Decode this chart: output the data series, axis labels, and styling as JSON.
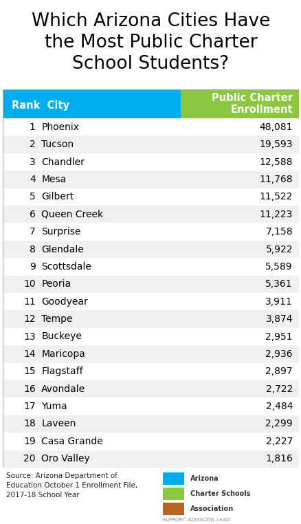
{
  "title": "Which Arizona Cities Have\nthe Most Public Charter\nSchool Students?",
  "header_col1": "Rank  City",
  "header_col2": "Public Charter\nEnrollment",
  "ranks": [
    1,
    2,
    3,
    4,
    5,
    6,
    7,
    8,
    9,
    10,
    11,
    12,
    13,
    14,
    15,
    16,
    17,
    18,
    19,
    20
  ],
  "cities": [
    "Phoenix",
    "Tucson",
    "Chandler",
    "Mesa",
    "Gilbert",
    "Queen Creek",
    "Surprise",
    "Glendale",
    "Scottsdale",
    "Peoria",
    "Goodyear",
    "Tempe",
    "Buckeye",
    "Maricopa",
    "Flagstaff",
    "Avondale",
    "Yuma",
    "Laveen",
    "Casa Grande",
    "Oro Valley"
  ],
  "enrollments": [
    "48,081",
    "19,593",
    "12,588",
    "11,768",
    "11,522",
    "11,223",
    "7,158",
    "5,922",
    "5,589",
    "5,361",
    "3,911",
    "3,874",
    "2,951",
    "2,936",
    "2,897",
    "2,722",
    "2,484",
    "2,299",
    "2,227",
    "1,816"
  ],
  "header_bg_left": "#00aeef",
  "header_bg_right": "#8dc63f",
  "header_text_color": "#ffffff",
  "row_bg_odd": "#f0f0f0",
  "row_bg_even": "#ffffff",
  "title_color": "#000000",
  "rank_city_color": "#000000",
  "enrollment_color": "#000000",
  "source_text": "Source: Arizona Department of\nEducation October 1 Enrollment File,\n2017-18 School Year",
  "logo_colors": [
    "#00aeef",
    "#8dc63f",
    "#b5651d"
  ],
  "logo_label_lines": [
    "Arizona",
    "Charter Schools",
    "Association"
  ],
  "logo_subtext": "SUPPORT. ADVOCATE. LEAD.",
  "table_border_color": "#aaaaaa",
  "title_fontsize": 19,
  "header_fontsize": 10.5,
  "row_fontsize": 10,
  "source_fontsize": 7.5
}
